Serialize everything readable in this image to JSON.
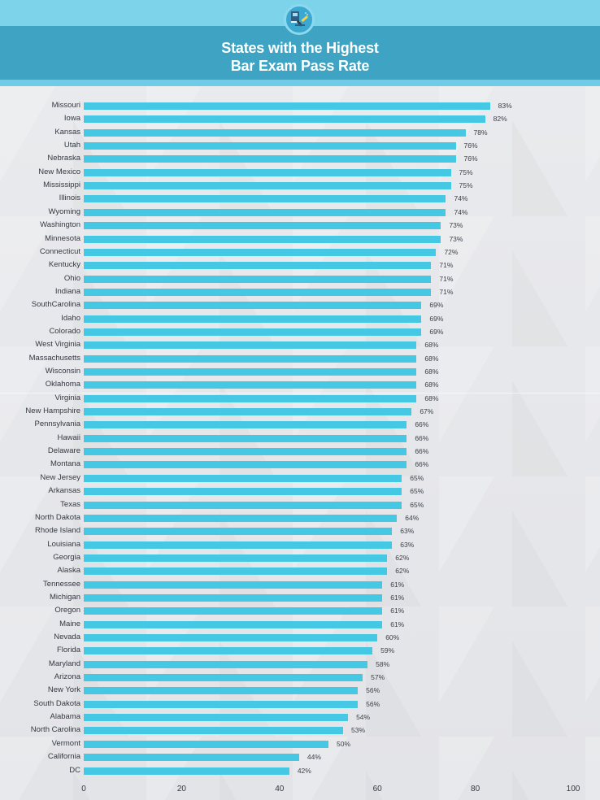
{
  "header": {
    "title_line1": "States with the Highest",
    "title_line2": "Bar Exam Pass Rate",
    "icon": "gavel-and-law-book-icon"
  },
  "colors": {
    "top_band": "#7dd3ea",
    "title_band": "#3fa4c3",
    "bar": "#45c8e3",
    "background": "#e6e7ea",
    "text": "#333840"
  },
  "chart_data": {
    "type": "bar",
    "orientation": "horizontal",
    "title": "States with the Highest Bar Exam Pass Rate",
    "xlabel": "",
    "ylabel": "",
    "xlim": [
      0,
      100
    ],
    "xticks": [
      0,
      20,
      40,
      60,
      80,
      100
    ],
    "grid": false,
    "legend": null,
    "value_suffix": "%",
    "categories": [
      "Missouri",
      "Iowa",
      "Kansas",
      "Utah",
      "Nebraska",
      "New Mexico",
      "Mississippi",
      "Illinois",
      "Wyoming",
      "Washington",
      "Minnesota",
      "Connecticut",
      "Kentucky",
      "Ohio",
      "Indiana",
      "SouthCarolina",
      "Idaho",
      "Colorado",
      "West Virginia",
      "Massachusetts",
      "Wisconsin",
      "Oklahoma",
      "Virginia",
      "New Hampshire",
      "Pennsylvania",
      "Hawaii",
      "Delaware",
      "Montana",
      "New Jersey",
      "Arkansas",
      "Texas",
      "North Dakota",
      "Rhode Island",
      "Louisiana",
      "Georgia",
      "Alaska",
      "Tennessee",
      "Michigan",
      "Oregon",
      "Maine",
      "Nevada",
      "Florida",
      "Maryland",
      "Arizona",
      "New York",
      "South Dakota",
      "Alabama",
      "North Carolina",
      "Vermont",
      "California",
      "DC"
    ],
    "values": [
      83,
      82,
      78,
      76,
      76,
      75,
      75,
      74,
      74,
      73,
      73,
      72,
      71,
      71,
      71,
      69,
      69,
      69,
      68,
      68,
      68,
      68,
      68,
      67,
      66,
      66,
      66,
      66,
      65,
      65,
      65,
      64,
      63,
      63,
      62,
      62,
      61,
      61,
      61,
      61,
      60,
      59,
      58,
      57,
      56,
      56,
      54,
      53,
      50,
      44,
      42
    ]
  }
}
